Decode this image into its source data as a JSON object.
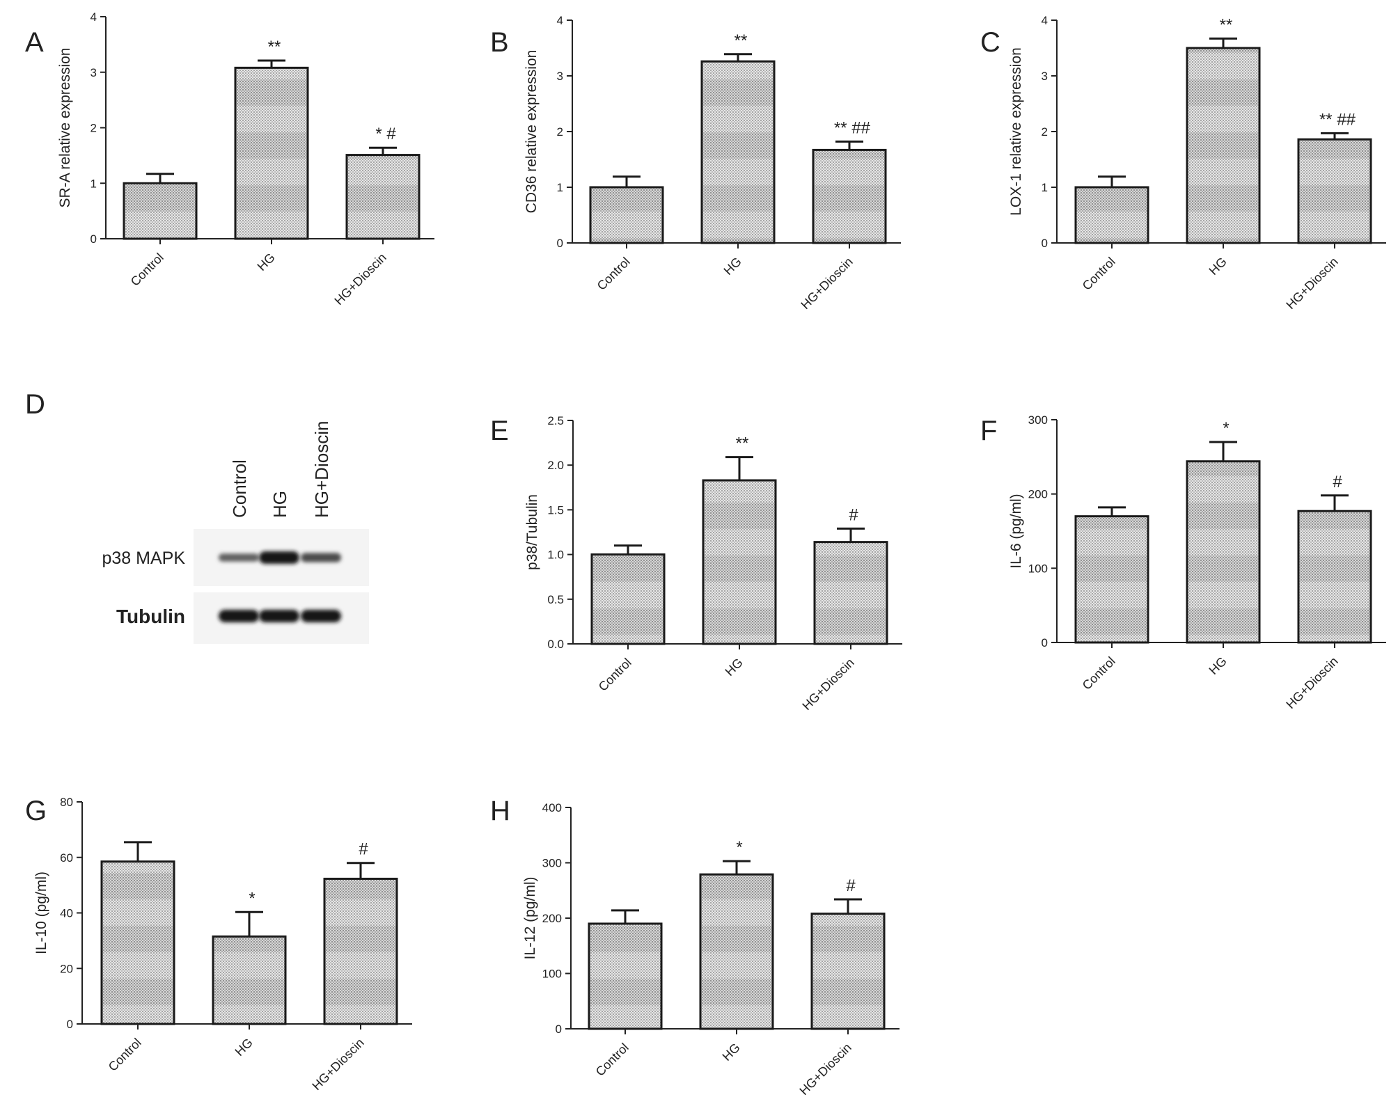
{
  "chart_data": [
    {
      "panel": "A",
      "type": "bar",
      "categories": [
        "Control",
        "HG",
        "HG+Dioscin"
      ],
      "values": [
        1.0,
        3.08,
        1.51
      ],
      "errors": [
        0.17,
        0.13,
        0.13
      ],
      "annotations": [
        "",
        "**",
        "* #"
      ],
      "ylabel": "SR-A relative expression",
      "ylim": [
        0,
        4
      ],
      "yticks": [
        "0",
        "1",
        "2",
        "3",
        "4"
      ]
    },
    {
      "panel": "B",
      "type": "bar",
      "categories": [
        "Control",
        "HG",
        "HG+Dioscin"
      ],
      "values": [
        1.0,
        3.26,
        1.67
      ],
      "errors": [
        0.19,
        0.13,
        0.15
      ],
      "annotations": [
        "",
        "**",
        "** ##"
      ],
      "ylabel": "CD36 relative expression",
      "ylim": [
        0,
        4
      ],
      "yticks": [
        "0",
        "1",
        "2",
        "3",
        "4"
      ]
    },
    {
      "panel": "C",
      "type": "bar",
      "categories": [
        "Control",
        "HG",
        "HG+Dioscin"
      ],
      "values": [
        1.0,
        3.5,
        1.86
      ],
      "errors": [
        0.19,
        0.17,
        0.11
      ],
      "annotations": [
        "",
        "**",
        "** ##"
      ],
      "ylabel": "LOX-1 relative expression",
      "ylim": [
        0,
        4
      ],
      "yticks": [
        "0",
        "1",
        "2",
        "3",
        "4"
      ]
    },
    {
      "panel": "E",
      "type": "bar",
      "categories": [
        "Control",
        "HG",
        "HG+Dioscin"
      ],
      "values": [
        1.0,
        1.83,
        1.14
      ],
      "errors": [
        0.1,
        0.26,
        0.15
      ],
      "annotations": [
        "",
        "**",
        "#"
      ],
      "ylabel": "p38/Tubulin",
      "ylim": [
        0,
        2.5
      ],
      "yticks": [
        "0.0",
        "0.5",
        "1.0",
        "1.5",
        "2.0",
        "2.5"
      ]
    },
    {
      "panel": "F",
      "type": "bar",
      "categories": [
        "Control",
        "HG",
        "HG+Dioscin"
      ],
      "values": [
        170,
        244,
        177
      ],
      "errors": [
        12,
        26,
        21
      ],
      "annotations": [
        "",
        "*",
        "#"
      ],
      "ylabel": "IL-6 (pg/ml)",
      "ylim": [
        0,
        300
      ],
      "yticks": [
        "0",
        "100",
        "200",
        "300"
      ]
    },
    {
      "panel": "G",
      "type": "bar",
      "categories": [
        "Control",
        "HG",
        "HG+Dioscin"
      ],
      "values": [
        58.5,
        31.5,
        52.3
      ],
      "errors": [
        7,
        8.8,
        5.7
      ],
      "annotations": [
        "",
        "*",
        "#"
      ],
      "ylabel": "IL-10 (pg/ml)",
      "ylim": [
        0,
        80
      ],
      "yticks": [
        "0",
        "20",
        "40",
        "60",
        "80"
      ]
    },
    {
      "panel": "H",
      "type": "bar",
      "categories": [
        "Control",
        "HG",
        "HG+Dioscin"
      ],
      "values": [
        190,
        279,
        208
      ],
      "errors": [
        24,
        24,
        26
      ],
      "annotations": [
        "",
        "*",
        "#"
      ],
      "ylabel": "IL-12 (pg/ml)",
      "ylim": [
        0,
        400
      ],
      "yticks": [
        "0",
        "100",
        "200",
        "300",
        "400"
      ]
    }
  ],
  "western_blot": {
    "panel": "D",
    "lane_labels": [
      "Control",
      "HG",
      "HG+Dioscin"
    ],
    "rows": [
      {
        "label": "p38 MAPK",
        "bold": false,
        "intensities": [
          0.45,
          1.0,
          0.6
        ]
      },
      {
        "label": "Tubulin",
        "bold": true,
        "intensities": [
          1.0,
          1.0,
          1.0
        ]
      }
    ]
  }
}
